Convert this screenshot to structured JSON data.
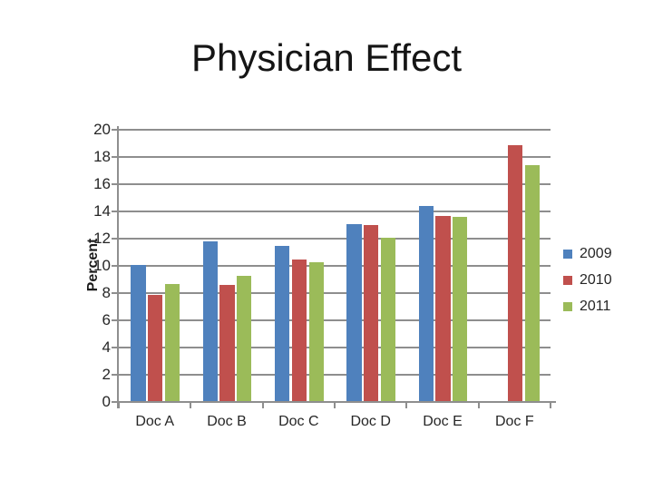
{
  "slide": {
    "title": "Physician Effect"
  },
  "chart_data": {
    "type": "bar",
    "title": "Physician Effect",
    "categories": [
      "Doc A",
      "Doc B",
      "Doc C",
      "Doc D",
      "Doc E",
      "Doc F"
    ],
    "series": [
      {
        "name": "2009",
        "color": "#4F81BD",
        "values": [
          10.1,
          11.8,
          11.5,
          13.1,
          14.4,
          null
        ]
      },
      {
        "name": "2010",
        "color": "#C0504D",
        "values": [
          7.9,
          8.6,
          10.5,
          13.0,
          13.7,
          18.9
        ]
      },
      {
        "name": "2011",
        "color": "#9BBB59",
        "values": [
          8.7,
          9.3,
          10.3,
          12.1,
          13.6,
          17.4
        ]
      }
    ],
    "xlabel": "",
    "ylabel": "Percent",
    "ylim": [
      0,
      20
    ],
    "ytick_step": 2,
    "ytick_labels": [
      "0",
      "2",
      "4",
      "6",
      "8",
      "10",
      "12",
      "14",
      "16",
      "18",
      "20"
    ],
    "grid": "horizontal",
    "legend_position": "right",
    "legend_entries": [
      "2009",
      "2010",
      "2011"
    ],
    "axis_color": "#8E8E8E",
    "text_color": "#262626",
    "background_color": "#FFFFFF"
  }
}
